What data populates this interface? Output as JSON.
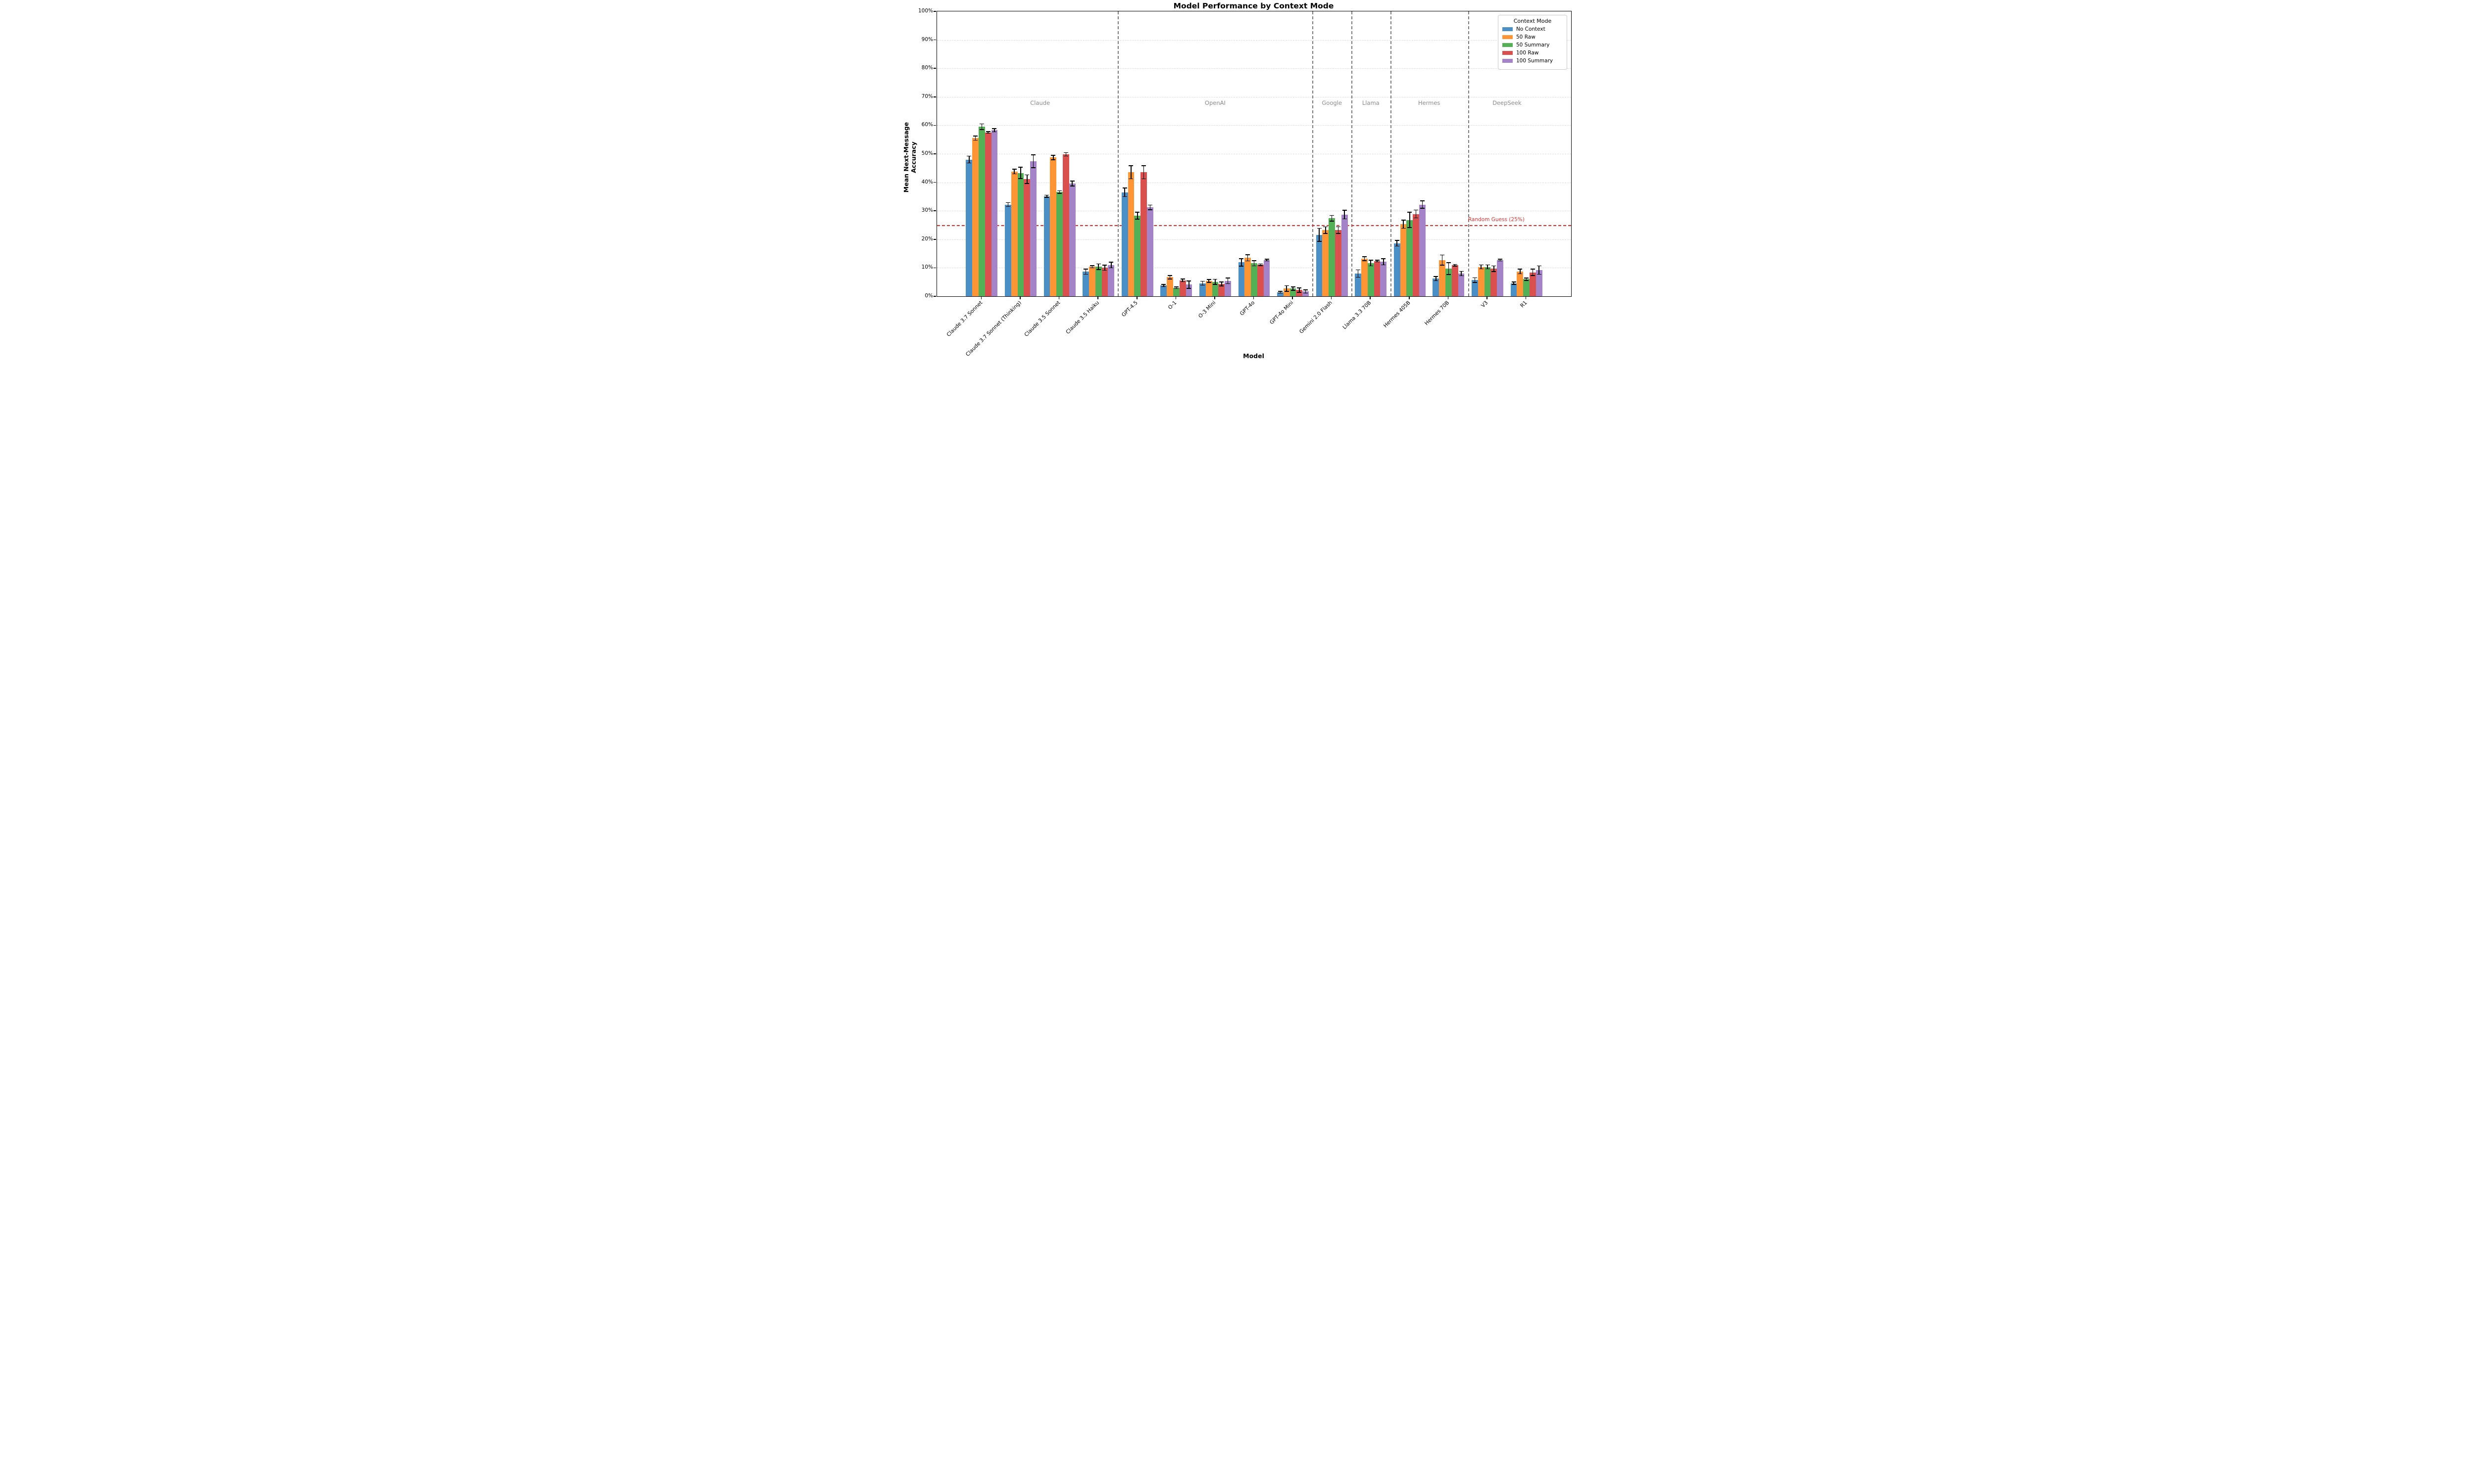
{
  "chart_data": {
    "type": "bar",
    "title": "Model Performance by Context Mode",
    "xlabel": "Model",
    "ylabel": "Mean Next-Message Accuracy",
    "ylim": [
      0,
      100
    ],
    "ytick_labels": [
      "0%",
      "10%",
      "20%",
      "30%",
      "40%",
      "50%",
      "60%",
      "70%",
      "80%",
      "90%",
      "100%"
    ],
    "grid": "horizontal dashed at each 10%",
    "legend": {
      "title": "Context Mode",
      "position": "top-right",
      "entries": [
        "No Context",
        "50 Raw",
        "50 Summary",
        "100 Raw",
        "100 Summary"
      ]
    },
    "reference_line": {
      "value": 25,
      "label": "Random Guess (25%)",
      "color": "#ee2b2b",
      "style": "dashed"
    },
    "categories": [
      "Claude 3.7 Sonnet",
      "Claude 3.7 Sonnet (Thinking)",
      "Claude 3.5 Sonnet",
      "Claude 3.5 Haiku",
      "GPT-4.5",
      "O-1",
      "O-3 Mini",
      "GPT-4o",
      "GPT-4o Mini",
      "Gemini 2.0 Flash",
      "Llama 3.3 70B",
      "Hermes 405B",
      "Hermes 70B",
      "V3",
      "R1"
    ],
    "series": [
      {
        "name": "No Context",
        "color": "#4a90c6",
        "values": [
          48.0,
          32.2,
          35.1,
          8.6,
          36.5,
          3.8,
          4.6,
          11.9,
          1.4,
          21.6,
          8.0,
          18.6,
          6.2,
          5.7,
          4.6
        ],
        "errors": [
          1.2,
          0.7,
          0.4,
          0.9,
          1.5,
          0.4,
          0.7,
          1.3,
          0.3,
          2.3,
          1.3,
          1.0,
          0.7,
          0.8,
          0.4
        ]
      },
      {
        "name": "50 Raw",
        "color": "#ff9535",
        "values": [
          55.5,
          43.8,
          48.7,
          10.4,
          43.5,
          6.7,
          5.4,
          13.5,
          2.7,
          23.2,
          13.2,
          25.3,
          12.7,
          10.3,
          8.7
        ],
        "errors": [
          0.7,
          0.8,
          0.8,
          0.4,
          2.3,
          0.6,
          0.5,
          1.1,
          1.0,
          1.2,
          0.7,
          1.4,
          1.8,
          0.7,
          0.8
        ]
      },
      {
        "name": "50 Summary",
        "color": "#53b055",
        "values": [
          59.5,
          43.3,
          36.6,
          10.4,
          28.3,
          3.0,
          5.1,
          11.6,
          2.7,
          27.4,
          11.7,
          26.8,
          9.7,
          10.3,
          6.0
        ],
        "errors": [
          1.0,
          2.0,
          0.5,
          1.0,
          1.2,
          0.3,
          0.9,
          0.9,
          0.6,
          1.0,
          1.0,
          2.7,
          2.1,
          0.7,
          0.4
        ]
      },
      {
        "name": "100 Raw",
        "color": "#d9504f",
        "values": [
          57.5,
          41.1,
          49.8,
          10.0,
          43.5,
          5.6,
          4.3,
          11.1,
          2.2,
          23.2,
          12.4,
          28.9,
          10.9,
          9.7,
          8.4
        ],
        "errors": [
          0.3,
          1.5,
          0.6,
          0.9,
          2.3,
          0.5,
          0.7,
          0.3,
          0.8,
          1.2,
          0.3,
          1.4,
          0.3,
          1.0,
          1.1
        ]
      },
      {
        "name": "100 Summary",
        "color": "#a583c9",
        "values": [
          58.3,
          47.4,
          39.6,
          11.0,
          31.2,
          4.1,
          5.4,
          12.7,
          1.7,
          28.7,
          12.1,
          32.2,
          8.0,
          12.7,
          9.2
        ],
        "errors": [
          0.6,
          2.3,
          0.9,
          1.0,
          0.8,
          1.3,
          1.0,
          0.3,
          0.6,
          1.5,
          1.1,
          1.3,
          0.8,
          0.3,
          1.5
        ]
      }
    ],
    "vendor_groups": [
      {
        "label": "Claude",
        "start_index": 0,
        "end_index": 3
      },
      {
        "label": "OpenAI",
        "start_index": 4,
        "end_index": 8
      },
      {
        "label": "Google",
        "start_index": 9,
        "end_index": 9
      },
      {
        "label": "Llama",
        "start_index": 10,
        "end_index": 10
      },
      {
        "label": "Hermes",
        "start_index": 11,
        "end_index": 12
      },
      {
        "label": "DeepSeek",
        "start_index": 13,
        "end_index": 14
      }
    ],
    "separators_after_index": [
      3,
      8,
      9,
      10,
      12
    ],
    "vendor_label_y_value": 67.8,
    "error_bar_color": "#000000"
  }
}
